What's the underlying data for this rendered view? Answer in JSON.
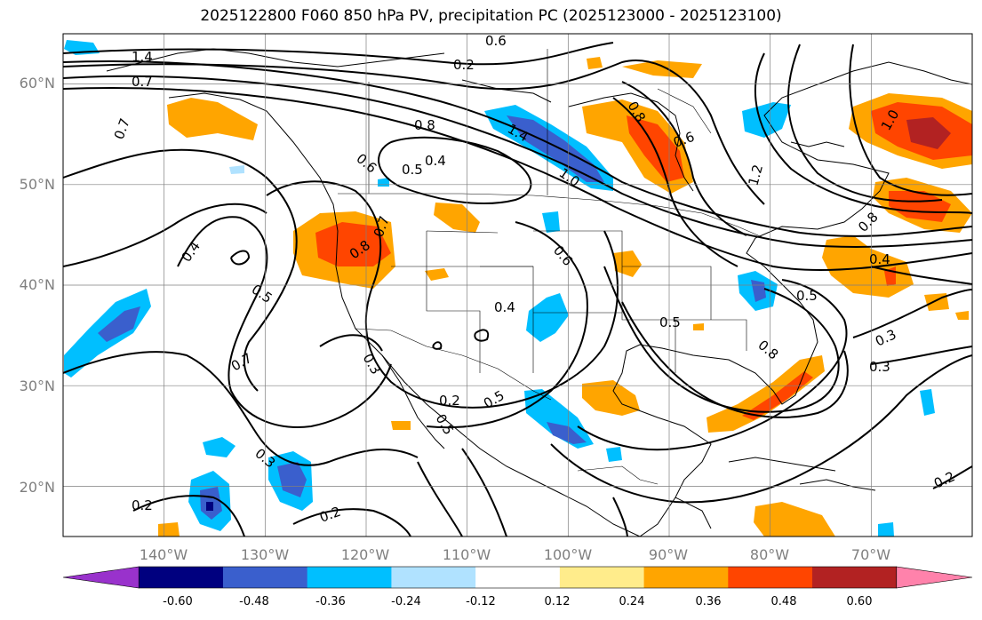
{
  "title": "2025122800 F060 850 hPa PV, precipitation PC (2025123000 - 2025123100)",
  "map": {
    "projection": "plate carree",
    "lon_range": [
      -150,
      -60
    ],
    "lat_range": [
      15,
      65
    ],
    "grid": true,
    "lon_ticks": [
      "140°W",
      "130°W",
      "120°W",
      "110°W",
      "100°W",
      "90°W",
      "80°W",
      "70°W"
    ],
    "lat_ticks": [
      "60°N",
      "50°N",
      "40°N",
      "30°N",
      "20°N"
    ],
    "contour_labels": [
      "1.4",
      "0.7",
      "0.6",
      "0.2",
      "0.7",
      "0.8",
      "0.6",
      "0.5",
      "0.4",
      "1.4",
      "1.0",
      "0.6",
      "0.8",
      "1.2",
      "1.0",
      "0.8",
      "0.4",
      "0.7",
      "0.8",
      "0.4",
      "0.5",
      "0.6",
      "0.4",
      "0.5",
      "0.7",
      "0.3",
      "0.5",
      "0.2",
      "0.3",
      "0.8",
      "0.2",
      "0.3",
      "0.3",
      "0.2",
      "0.5",
      "0.2",
      "0.5"
    ]
  },
  "colorbar": {
    "colors": [
      "#9932cc",
      "#00007f",
      "#3a5fcd",
      "#00bfff",
      "#b0e2ff",
      "#ffffff",
      "#ffec8b",
      "#ffa500",
      "#ff4500",
      "#b22222",
      "#ff82ab"
    ],
    "labels": [
      "-0.60",
      "-0.48",
      "-0.36",
      "-0.24",
      "-0.12",
      "0.12",
      "0.24",
      "0.36",
      "0.48",
      "0.60"
    ],
    "extend": "both"
  }
}
